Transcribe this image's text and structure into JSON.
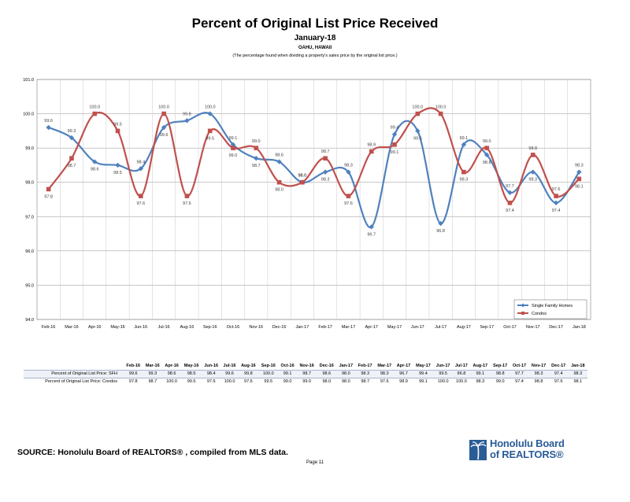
{
  "chart_data": {
    "type": "line",
    "title": "Percent of Original List Price Received",
    "subtitle": "January-18",
    "region": "OAHU, HAWAII",
    "note": "(The percentage found when dividing a property's sales price by the original list price.)",
    "categories": [
      "Feb-16",
      "Mar-16",
      "Apr-16",
      "May-16",
      "Jun-16",
      "Jul-16",
      "Aug-16",
      "Sep-16",
      "Oct-16",
      "Nov-16",
      "Dec-16",
      "Jan-17",
      "Feb-17",
      "Mar-17",
      "Apr-17",
      "May-17",
      "Jun-17",
      "Jul-17",
      "Aug-17",
      "Sep-17",
      "Oct-17",
      "Nov-17",
      "Dec-17",
      "Jan-18"
    ],
    "series": [
      {
        "name": "Single Family Homes",
        "color": "#4f81bd",
        "values": [
          99.6,
          99.3,
          98.6,
          98.5,
          98.4,
          99.6,
          99.8,
          100.0,
          99.1,
          98.7,
          98.6,
          98.0,
          98.3,
          98.3,
          96.7,
          99.4,
          99.5,
          96.8,
          99.1,
          98.8,
          97.7,
          98.3,
          97.4,
          98.3
        ]
      },
      {
        "name": "Condos",
        "color": "#c0504d",
        "values": [
          97.8,
          98.7,
          100.0,
          99.5,
          97.6,
          100.0,
          97.6,
          99.5,
          99.0,
          99.0,
          98.0,
          98.0,
          98.7,
          97.6,
          98.9,
          99.1,
          100.0,
          100.0,
          98.3,
          99.0,
          97.4,
          98.8,
          97.6,
          98.1
        ]
      }
    ],
    "ylim": [
      94.0,
      101.0
    ],
    "yticks": [
      "94.0",
      "95.0",
      "96.0",
      "97.0",
      "98.0",
      "99.0",
      "100.0",
      "101.0"
    ],
    "grid": true,
    "legend_position": "bottom-right"
  },
  "table": {
    "rows": [
      {
        "label": "Percent of Original List Price: SFH",
        "values": [
          "99.6",
          "99.3",
          "98.6",
          "98.5",
          "98.4",
          "99.6",
          "99.8",
          "100.0",
          "99.1",
          "98.7",
          "98.6",
          "98.0",
          "98.3",
          "98.3",
          "96.7",
          "99.4",
          "99.5",
          "96.8",
          "99.1",
          "98.8",
          "97.7",
          "98.3",
          "97.4",
          "98.3"
        ]
      },
      {
        "label": "Percent of Original List Price: Condos",
        "values": [
          "97.8",
          "98.7",
          "100.0",
          "99.5",
          "97.6",
          "100.0",
          "97.6",
          "99.5",
          "99.0",
          "99.0",
          "98.0",
          "98.0",
          "98.7",
          "97.6",
          "98.9",
          "99.1",
          "100.0",
          "100.0",
          "98.3",
          "99.0",
          "97.4",
          "98.8",
          "97.6",
          "98.1"
        ]
      }
    ]
  },
  "footer": {
    "source": "SOURCE:  Honolulu Board of REALTORS® , compiled from MLS data.",
    "page": "Page 11",
    "logo_line1": "Honolulu Board",
    "logo_line2": "of REALTORS®"
  }
}
